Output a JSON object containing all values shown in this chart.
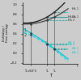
{
  "bg_color": "#cccccc",
  "ylabel": "Enthalpy /\nFree energy",
  "xlabel": "T",
  "x_ticks_labels": [
    "T₁=60°C",
    "T₂",
    "T₃"
  ],
  "x_ticks_pos": [
    0.15,
    0.52,
    0.68
  ],
  "vline_positions": [
    0.15,
    0.52,
    0.68
  ],
  "t1": 0.15,
  "t2": 0.52,
  "t3": 0.68,
  "color_H_liquid": "#111111",
  "color_H_solid": "#444444",
  "color_G_liquid": "#00bbcc",
  "color_G_solid": "#00ddee",
  "color_vline": "#555555",
  "color_hline": "#00bbcc",
  "right_label_color_H": "#222222",
  "right_label_color_G": "#00bbcc",
  "fs_labels": 3.2,
  "fs_axis": 2.8,
  "fs_numbers": 3.5
}
